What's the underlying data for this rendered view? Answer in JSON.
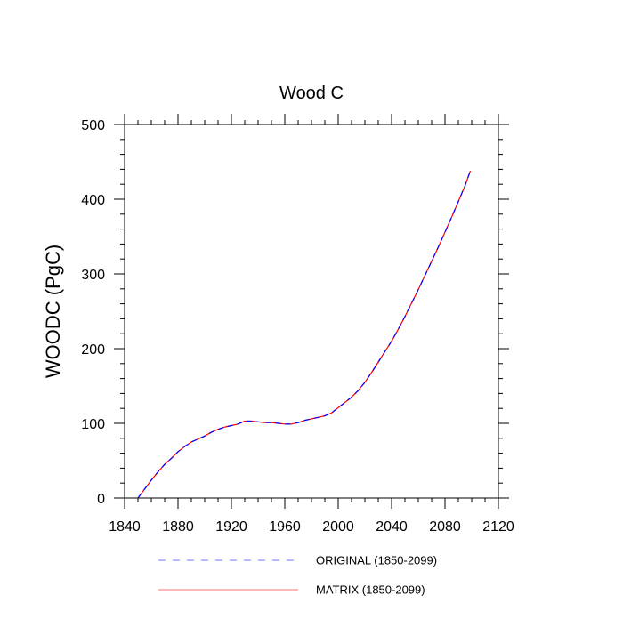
{
  "chart_data": {
    "type": "line",
    "title": "Wood C",
    "xlabel": "",
    "ylabel": "WOODC  (PgC)",
    "xlim": [
      1840,
      2120
    ],
    "ylim": [
      0,
      500
    ],
    "xticks": [
      1840,
      1880,
      1920,
      1960,
      2000,
      2040,
      2080,
      2120
    ],
    "yticks": [
      0,
      100,
      200,
      300,
      400,
      500
    ],
    "grid": false,
    "legend_placement": "bottom",
    "x": [
      1850,
      1855,
      1860,
      1865,
      1870,
      1875,
      1880,
      1885,
      1890,
      1895,
      1900,
      1905,
      1910,
      1915,
      1920,
      1925,
      1930,
      1935,
      1940,
      1945,
      1950,
      1955,
      1960,
      1965,
      1970,
      1975,
      1980,
      1985,
      1990,
      1995,
      2000,
      2005,
      2010,
      2015,
      2020,
      2025,
      2030,
      2035,
      2040,
      2045,
      2050,
      2055,
      2060,
      2065,
      2070,
      2075,
      2080,
      2085,
      2090,
      2095,
      2099
    ],
    "series": [
      {
        "name": "ORIGINAL (1850-2099)",
        "color": "#0000ff",
        "style": "dashed",
        "values": [
          0,
          12,
          24,
          35,
          45,
          53,
          62,
          69,
          75,
          79,
          83,
          88,
          92,
          95,
          97,
          99,
          103,
          103,
          102,
          101,
          101,
          100,
          99,
          99,
          101,
          104,
          106,
          108,
          110,
          114,
          121,
          128,
          135,
          144,
          155,
          168,
          182,
          196,
          210,
          226,
          243,
          261,
          279,
          298,
          317,
          336,
          356,
          376,
          397,
          418,
          438
        ]
      },
      {
        "name": "MATRIX (1850-2099)",
        "color": "#ff0000",
        "style": "solid",
        "values": [
          0,
          12,
          24,
          35,
          45,
          53,
          62,
          69,
          75,
          79,
          83,
          88,
          92,
          95,
          97,
          99,
          103,
          103,
          102,
          101,
          101,
          100,
          99,
          99,
          101,
          104,
          106,
          108,
          110,
          114,
          121,
          128,
          135,
          144,
          155,
          168,
          182,
          196,
          210,
          226,
          243,
          261,
          279,
          298,
          317,
          336,
          356,
          376,
          397,
          418,
          438
        ]
      }
    ]
  }
}
